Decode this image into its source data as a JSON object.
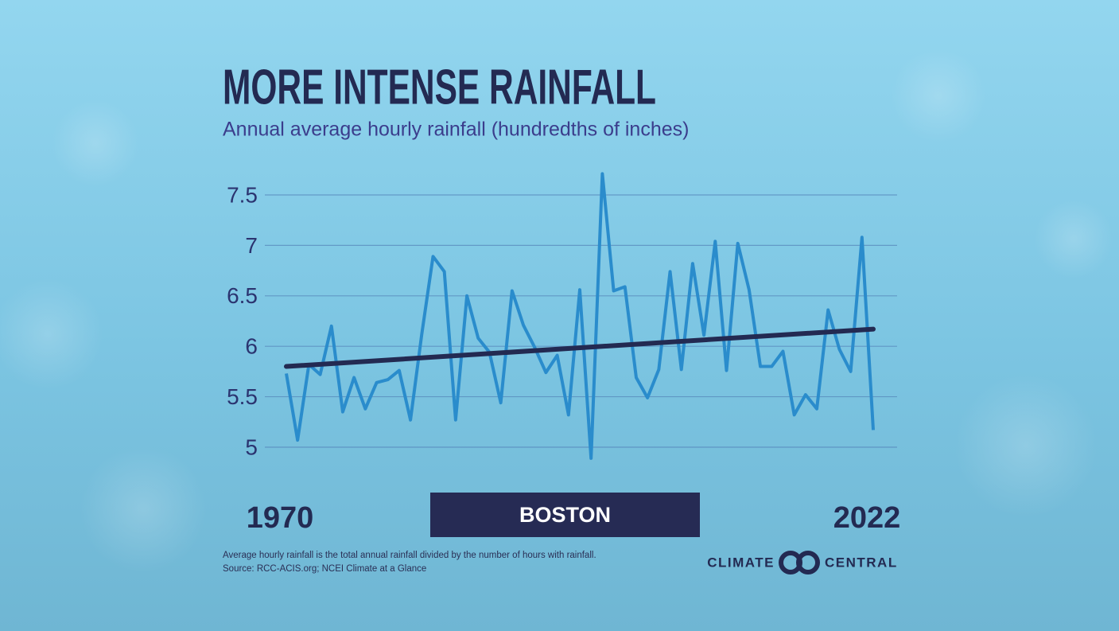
{
  "chart_data": {
    "type": "line",
    "title": "MORE INTENSE RAINFALL",
    "subtitle": "Annual average hourly rainfall (hundredths of inches)",
    "x": [
      1970,
      1971,
      1972,
      1973,
      1974,
      1975,
      1976,
      1977,
      1978,
      1979,
      1980,
      1981,
      1982,
      1983,
      1984,
      1985,
      1986,
      1987,
      1988,
      1989,
      1990,
      1991,
      1992,
      1993,
      1994,
      1995,
      1996,
      1997,
      1998,
      1999,
      2000,
      2001,
      2002,
      2003,
      2004,
      2005,
      2006,
      2007,
      2008,
      2009,
      2010,
      2011,
      2012,
      2013,
      2014,
      2015,
      2016,
      2017,
      2018,
      2019,
      2020,
      2021,
      2022
    ],
    "series": [
      {
        "color": "#2a8ccc",
        "values": [
          5.73,
          5.07,
          5.82,
          5.72,
          6.2,
          5.35,
          5.69,
          5.38,
          5.64,
          5.67,
          5.76,
          5.27,
          6.12,
          6.89,
          6.74,
          5.27,
          6.5,
          6.08,
          5.94,
          5.44,
          6.55,
          6.21,
          5.99,
          5.74,
          5.91,
          5.32,
          6.56,
          4.89,
          7.71,
          6.55,
          6.59,
          5.69,
          5.49,
          5.77,
          6.74,
          5.77,
          6.82,
          6.11,
          7.04,
          5.76,
          7.02,
          6.56,
          5.8,
          5.8,
          5.95,
          5.32,
          5.52,
          5.38,
          6.36,
          5.97,
          5.75,
          7.08,
          5.17
        ]
      }
    ],
    "trend": {
      "color": "#232a52",
      "x": [
        1970,
        2022
      ],
      "values": [
        5.8,
        6.17
      ]
    },
    "xlim": [
      1970,
      2022
    ],
    "xticks": [
      1970,
      2022
    ],
    "ylim": [
      4.85,
      7.75
    ],
    "yticks": [
      5,
      5.5,
      6,
      6.5,
      7,
      7.5
    ],
    "grid": true,
    "location": "BOSTON",
    "notes": [
      "Average hourly rainfall is the total annual rainfall divided by the number of hours with rainfall.",
      "Source: RCC-ACIS.org; NCEI Climate at a Glance"
    ],
    "logo": [
      "CLIMATE",
      "CENTRAL"
    ]
  }
}
